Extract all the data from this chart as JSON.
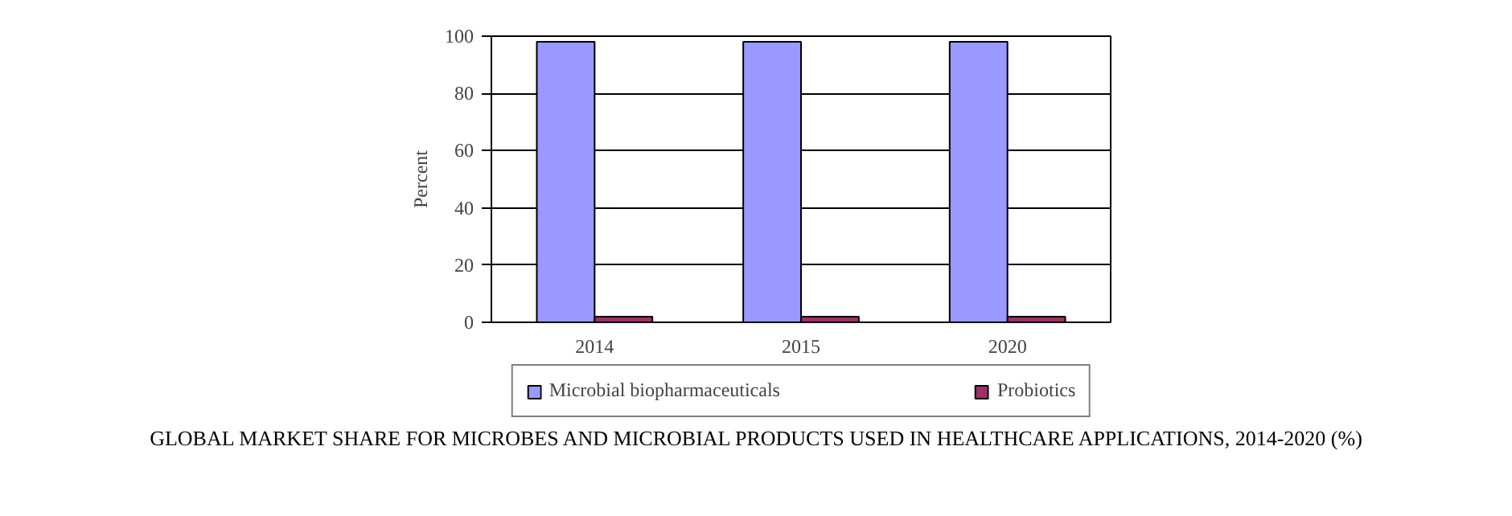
{
  "chart_data": {
    "type": "bar",
    "title": "GLOBAL MARKET SHARE FOR MICROBES AND MICROBIAL PRODUCTS USED IN HEALTHCARE APPLICATIONS, 2014-2020 (%)",
    "ylabel": "Percent",
    "categories": [
      "2014",
      "2015",
      "2020"
    ],
    "series": [
      {
        "name": "Microbial biopharmaceuticals",
        "color": "#9999ff",
        "values": [
          98,
          98,
          98
        ]
      },
      {
        "name": "Probiotics",
        "color": "#993366",
        "values": [
          2,
          2,
          2
        ]
      }
    ],
    "ylim": [
      0,
      100
    ],
    "yticks": [
      0,
      20,
      40,
      60,
      80,
      100
    ],
    "grid": "y",
    "legend": "bottom"
  }
}
